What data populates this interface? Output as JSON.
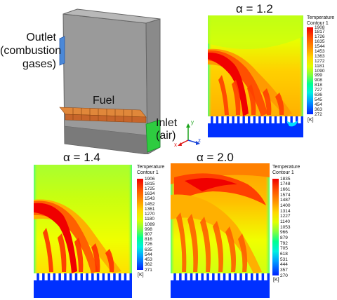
{
  "schematic": {
    "outlet_label_line1": "Outlet",
    "outlet_label_line2": "(combustion",
    "outlet_label_line3": "gases)",
    "fuel_label": "Fuel",
    "inlet_label_line1": "Inlet",
    "inlet_label_line2": "(air)",
    "axes": {
      "x": "x",
      "y": "y",
      "z": "z"
    }
  },
  "legend_header_line1": "Temperature",
  "legend_header_line2": "Contour 1",
  "legend_unit": "[K]",
  "colors": {
    "scale": [
      "#f00000",
      "#ff4000",
      "#ff8000",
      "#ffc000",
      "#ffff00",
      "#c0ff00",
      "#60ff40",
      "#00ff80",
      "#00ffc0",
      "#00e0ff",
      "#00a0ff",
      "#0060ff",
      "#0020ff"
    ],
    "cold": "#0030ff",
    "outlet_blue": "#4a88d8",
    "inlet_green": "#2ecc40",
    "fuel_orange": "#d2691e"
  },
  "panels": {
    "a12": {
      "title": "α = 1.2",
      "ticks": [
        "1908",
        "1817",
        "1726",
        "1635",
        "1544",
        "1453",
        "1363",
        "1272",
        "1181",
        "1090",
        "999",
        "908",
        "818",
        "727",
        "636",
        "545",
        "454",
        "363",
        "272"
      ]
    },
    "a14": {
      "title": "α = 1.4",
      "ticks": [
        "1906",
        "1815",
        "1725",
        "1634",
        "1543",
        "1452",
        "1361",
        "1270",
        "1180",
        "1089",
        "998",
        "907",
        "816",
        "726",
        "635",
        "544",
        "453",
        "362",
        "271"
      ]
    },
    "a20": {
      "title": "α = 2.0",
      "ticks": [
        "1835",
        "1748",
        "1661",
        "1574",
        "1487",
        "1400",
        "1314",
        "1227",
        "1140",
        "1053",
        "966",
        "879",
        "792",
        "705",
        "618",
        "531",
        "444",
        "357",
        "270"
      ]
    }
  }
}
